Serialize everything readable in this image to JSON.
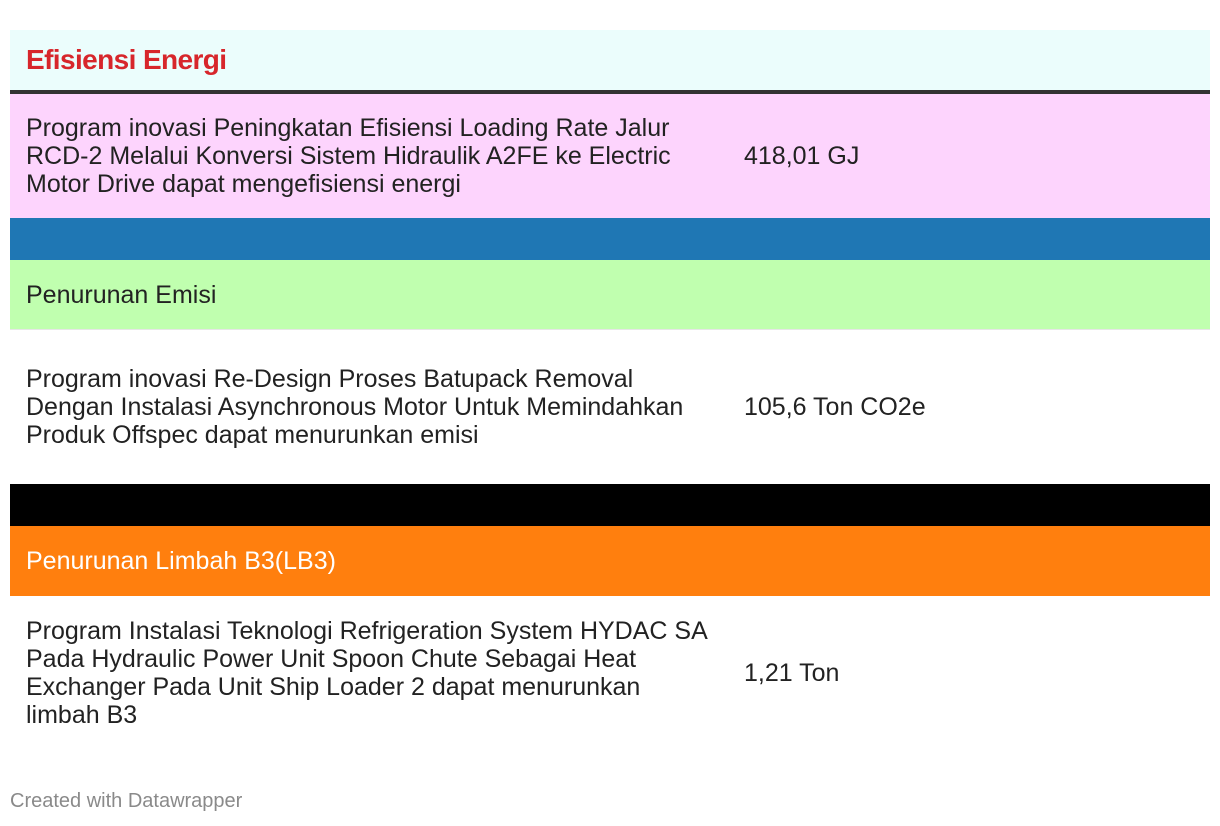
{
  "colors": {
    "title_bg": "#ebfdfc",
    "title_text": "#d7262b",
    "item1_bg": "#fdd4fd",
    "blue_separator": "#1f77b4",
    "green_bg": "#c0ffaf",
    "black_separator": "#000000",
    "orange_bg": "#ff7f0e",
    "orange_text": "#ffffff",
    "footer_text": "#8a8a8a"
  },
  "table": {
    "title": "Efisiensi Energi",
    "rows": [
      {
        "label": "Program inovasi Peningkatan Efisiensi Loading Rate Jalur RCD-2 Melalui Konversi Sistem Hidraulik A2FE ke Electric Motor Drive dapat mengefisiensi energi",
        "value": "418,01 GJ"
      },
      {
        "label": "Penurunan Emisi",
        "value": ""
      },
      {
        "label": "Program inovasi Re-Design Proses Batupack Removal Dengan Instalasi Asynchronous Motor Untuk Memindahkan Produk Offspec dapat menurunkan emisi",
        "value": "105,6 Ton CO2e"
      },
      {
        "label": "Penurunan Limbah B3(LB3)",
        "value": ""
      },
      {
        "label": "Program Instalasi Teknologi Refrigeration System HYDAC SA Pada Hydraulic Power Unit Spoon Chute Sebagai Heat Exchanger Pada Unit Ship Loader 2 dapat menurunkan limbah B3",
        "value": "1,21 Ton"
      }
    ]
  },
  "footer": {
    "credit": "Created with Datawrapper"
  }
}
